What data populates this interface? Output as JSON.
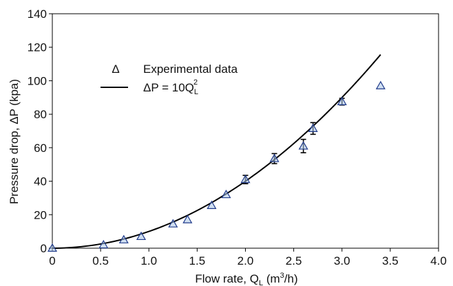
{
  "chart_data": {
    "type": "scatter",
    "title": "",
    "xlabel": {
      "main": "Flow rate, Q",
      "sub": "L",
      "open": " (m",
      "sup": "3",
      "close": "/h)"
    },
    "ylabel": "Pressure drop, ΔP (kpa)",
    "xlim": [
      0,
      4.0
    ],
    "ylim": [
      0,
      140
    ],
    "x_ticks": [
      0,
      0.5,
      1.0,
      1.5,
      2.0,
      2.5,
      3.0,
      3.5,
      4.0
    ],
    "x_tick_labels": [
      "0",
      "0.5",
      "1.0",
      "1.5",
      "2.0",
      "2.5",
      "3.0",
      "3.5",
      "4.0"
    ],
    "y_ticks": [
      0,
      20,
      40,
      60,
      80,
      100,
      120,
      140
    ],
    "y_tick_labels": [
      "0",
      "20",
      "40",
      "60",
      "80",
      "100",
      "120",
      "140"
    ],
    "grid": false,
    "legend_position": "top-left",
    "series": [
      {
        "name": "Experimental data",
        "kind": "scatter",
        "marker": "triangle",
        "legend_symbol": "Δ",
        "color": "#1f3a8a",
        "x": [
          0.0,
          0.53,
          0.74,
          0.92,
          1.25,
          1.4,
          1.65,
          1.8,
          2.0,
          2.3,
          2.6,
          2.7,
          3.0,
          3.4
        ],
        "y": [
          0,
          2,
          5,
          7,
          14.5,
          17,
          25.5,
          32,
          41,
          53.5,
          61,
          71.5,
          87.5,
          97
        ],
        "error": [
          0,
          0,
          0,
          0,
          0,
          0,
          0,
          0,
          2.5,
          3,
          4,
          3.5,
          2,
          0
        ]
      },
      {
        "name": "ΔP = 10Q",
        "name_sub": "L",
        "name_sup": "2",
        "kind": "line",
        "formula_coefficient": 10,
        "formula_exponent": 2,
        "x_range": [
          0,
          3.4
        ],
        "color": "#000000"
      }
    ]
  }
}
